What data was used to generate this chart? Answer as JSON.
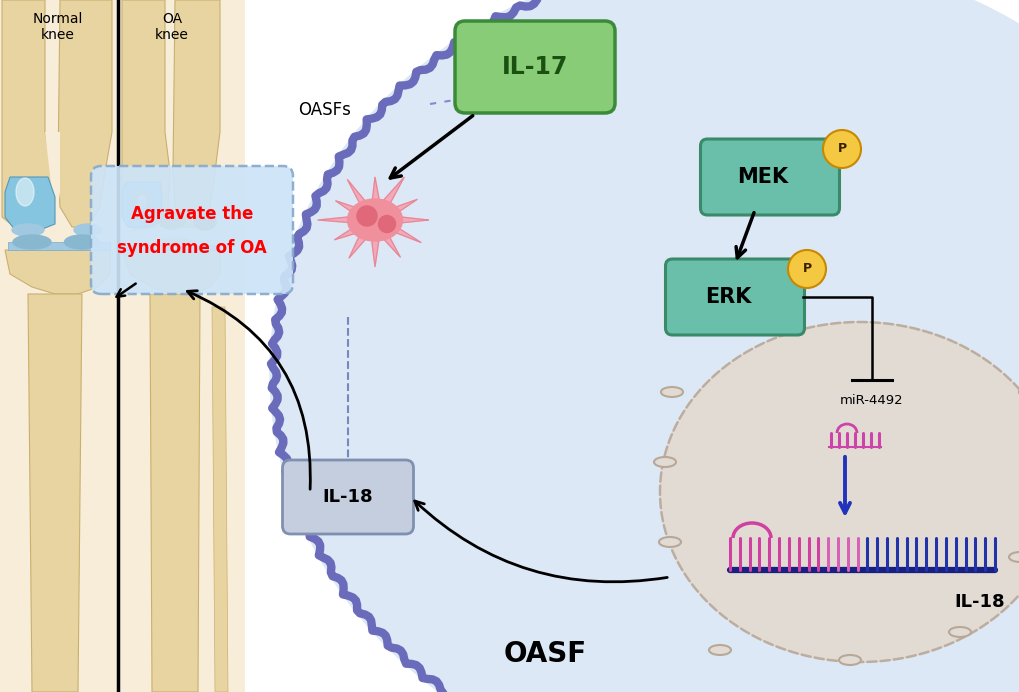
{
  "bg_color": "#ffffff",
  "cell_bg_color": "#dce8f5",
  "nucleus_bg_color": "#e2dbd4",
  "cell_membrane_color": "#6b6bbb",
  "nucleus_membrane_color": "#b8a898",
  "mek_box_color": "#6abfaa",
  "mek_box_edge": "#3a8a6a",
  "erk_box_color": "#6abfaa",
  "erk_box_edge": "#3a8a6a",
  "il17_box_color": "#88cc77",
  "il17_box_edge": "#3a8a3a",
  "il18_box_color": "#c5cedf",
  "il18_box_edge": "#8090b0",
  "phospho_circle_color": "#f5c842",
  "phospho_circle_edge": "#c88800",
  "agravate_box_color": "#cce4f8",
  "agravate_box_edge": "#88aacc",
  "normal_knee_label": "Normal\nknee",
  "oa_knee_label": "OA\nknee",
  "oasfs_label": "OASFs",
  "il17_label": "IL-17",
  "mek_label": "MEK",
  "erk_label": "ERK",
  "phospho_label": "P",
  "mir_label": "miR-4492",
  "il18_inner_label": "IL-18",
  "il18_outer_label": "IL-18",
  "oasf_bottom_label": "OASF",
  "agravate_line1": "Agravate the",
  "agravate_line2": "syndrome of OA",
  "knee_bg": "#f8edd8",
  "bone_color": "#e8d4a0",
  "bone_edge": "#c8b070",
  "cartilage_color": "#a0c8e0",
  "cartilage_dark": "#7aacc8"
}
